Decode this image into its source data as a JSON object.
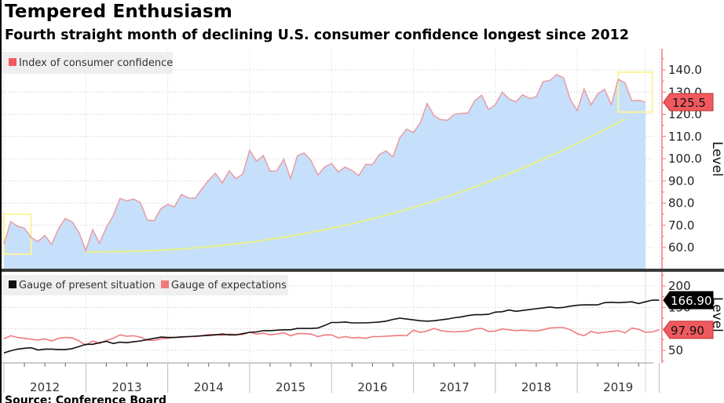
{
  "header": {
    "title": "Tempered Enthusiasm",
    "subtitle": "Fourth straight month of declining U.S. consumer confidence longest since 2012",
    "source": "Source: Conference Board"
  },
  "colors": {
    "index_line": "#e8a0a8",
    "index_fill": "#c6e0fb",
    "present_line": "#111111",
    "expectations_line": "#f07a7e",
    "badge_red": "#f05a5f",
    "badge_black": "#000000",
    "axis_red": "#f07a7e",
    "highlight_box": "#fbf59a",
    "trend_curve": "#e6f08a"
  },
  "chart_data": [
    {
      "type": "area",
      "title": "Index of consumer confidence",
      "legend": [
        "Index of consumer confidence"
      ],
      "legend_position": "top-left",
      "ylabel": "Level",
      "ylim": [
        52,
        146
      ],
      "yticks": [
        "140.0",
        "130.0",
        "120.0",
        "110.0",
        "100.0",
        "90.0",
        "80.0",
        "70.0",
        "60.0"
      ],
      "ytick_values": [
        140,
        130,
        120,
        110,
        100,
        90,
        80,
        70,
        60
      ],
      "grid": true,
      "x_start": "2012-01",
      "last_value_label": "125.5",
      "series": [
        {
          "name": "Index of consumer confidence",
          "values": [
            61.5,
            71.6,
            69.5,
            68.7,
            64.4,
            62.7,
            65.4,
            61.3,
            68.4,
            73.1,
            71.5,
            66.7,
            58.6,
            68.0,
            61.9,
            69.0,
            74.3,
            82.1,
            81.0,
            81.8,
            80.2,
            72.4,
            72.0,
            77.5,
            79.4,
            78.3,
            83.9,
            82.3,
            82.2,
            86.4,
            90.3,
            93.4,
            89.0,
            94.5,
            91.0,
            93.1,
            103.8,
            98.8,
            101.4,
            94.3,
            94.6,
            99.8,
            91.0,
            101.3,
            102.6,
            99.1,
            92.6,
            96.3,
            97.8,
            94.0,
            96.2,
            94.7,
            92.4,
            97.4,
            97.3,
            101.8,
            103.5,
            100.8,
            109.4,
            113.3,
            111.8,
            116.1,
            124.9,
            119.4,
            117.6,
            117.3,
            120.0,
            120.4,
            120.6,
            126.2,
            128.6,
            122.1,
            124.3,
            130.0,
            127.0,
            125.6,
            128.8,
            127.1,
            127.9,
            134.7,
            135.3,
            137.9,
            136.4,
            126.6,
            121.7,
            131.4,
            124.2,
            129.2,
            131.3,
            124.3,
            135.8,
            134.2,
            126.1,
            126.3,
            125.5
          ]
        }
      ],
      "annotations": [
        {
          "type": "highlight-box",
          "from": "2012-01",
          "to": "2012-05",
          "ylow": 57,
          "yhigh": 75
        },
        {
          "type": "highlight-box",
          "from": "2019-07",
          "to": "2019-12",
          "ylow": 121,
          "yhigh": 139
        },
        {
          "type": "trend-curve",
          "from": "2013-01",
          "to": "2019-08",
          "ystart": 58,
          "yend": 118
        }
      ]
    },
    {
      "type": "line",
      "legend": [
        "Gauge of present situation",
        "Gauge of expectations"
      ],
      "legend_position": "top-left",
      "ylabel": "Level",
      "ylim": [
        20,
        230
      ],
      "yticks": [
        "200",
        "150",
        "100",
        "50"
      ],
      "ytick_values": [
        200,
        150,
        100,
        50
      ],
      "grid": true,
      "x_start": "2012-01",
      "xticks": [
        "2012",
        "2013",
        "2014",
        "2015",
        "2016",
        "2017",
        "2018",
        "2019"
      ],
      "series": [
        {
          "name": "Gauge of present situation",
          "last_value_label": "166.90",
          "values": [
            44,
            49,
            53,
            55,
            56,
            51,
            53,
            53,
            52,
            52,
            54,
            59,
            64,
            64,
            68,
            71,
            66,
            69,
            68,
            70,
            72,
            75,
            78,
            81,
            80,
            80,
            81,
            82,
            83,
            84,
            85,
            86,
            88,
            86,
            86,
            89,
            92,
            93,
            96,
            96,
            97,
            98,
            98,
            101,
            101,
            101,
            102,
            108,
            115,
            115,
            116,
            114,
            114,
            114,
            115,
            116,
            118,
            122,
            125,
            123,
            121,
            119,
            118,
            119,
            121,
            123,
            126,
            128,
            131,
            133,
            133,
            134,
            139,
            140,
            144,
            141,
            143,
            145,
            147,
            149,
            151,
            149,
            150,
            153,
            155,
            156,
            156,
            156,
            161,
            162,
            161,
            162,
            163,
            159,
            163,
            167,
            166.9
          ]
        },
        {
          "name": "Gauge of expectations",
          "last_value_label": "97.90",
          "values": [
            77,
            84,
            80,
            78,
            76,
            74,
            77,
            72,
            78,
            80,
            79,
            72,
            62,
            72,
            66,
            73,
            78,
            86,
            83,
            84,
            81,
            74,
            73,
            77,
            78,
            80,
            82,
            82,
            82,
            84,
            87,
            87,
            85,
            88,
            87,
            87,
            92,
            88,
            90,
            86,
            88,
            91,
            84,
            89,
            89,
            88,
            82,
            86,
            86,
            79,
            82,
            79,
            80,
            78,
            82,
            82,
            83,
            84,
            85,
            84,
            97,
            92,
            95,
            101,
            96,
            94,
            93,
            94,
            95,
            100,
            101,
            94,
            95,
            100,
            98,
            96,
            97,
            96,
            95,
            98,
            102,
            103,
            103,
            98,
            89,
            84,
            94,
            90,
            92,
            94,
            96,
            91,
            102,
            99,
            92,
            93,
            97.9
          ]
        }
      ]
    }
  ]
}
